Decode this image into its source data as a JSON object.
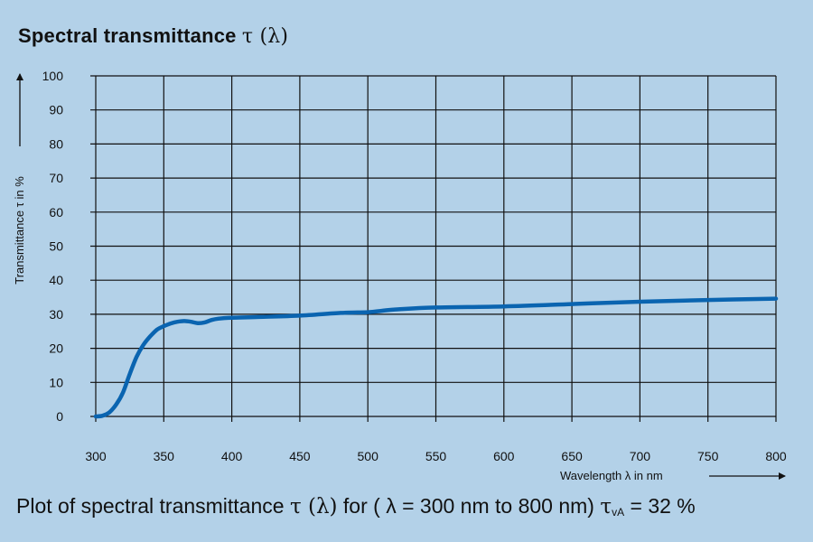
{
  "title": {
    "text": "Spectral transmittance",
    "symbol": "τ (λ)"
  },
  "caption": {
    "part1": "Plot of spectral transmittance ",
    "symbol1": "τ (λ)",
    "part2": "  for ( λ = 300 nm to 800 nm) ",
    "tau": "τ",
    "sub": "vA",
    "part3": " = 32 %"
  },
  "colors": {
    "background": "#b3d1e8",
    "grid": "#111111",
    "series": "#0a64b0"
  },
  "chart_data": {
    "type": "line",
    "xlabel": "Wavelength λ in nm",
    "ylabel": "Transmittance τ in %",
    "xlim": [
      300,
      800
    ],
    "ylim": [
      0,
      100
    ],
    "xticks": [
      "300",
      "350",
      "400",
      "450",
      "500",
      "550",
      "600",
      "650",
      "700",
      "750",
      "800"
    ],
    "yticks": [
      "0",
      "10",
      "20",
      "30",
      "40",
      "50",
      "60",
      "70",
      "80",
      "90",
      "100"
    ],
    "grid": true,
    "series": [
      {
        "x": [
          300,
          305,
          310,
          315,
          320,
          325,
          330,
          335,
          340,
          345,
          350,
          355,
          360,
          365,
          370,
          375,
          380,
          385,
          390,
          400,
          420,
          450,
          480,
          500,
          510,
          520,
          550,
          600,
          650,
          700,
          750,
          800
        ],
        "y": [
          0,
          0.2,
          1.2,
          3.5,
          7,
          12.5,
          17.5,
          21,
          23.5,
          25.5,
          26.5,
          27.3,
          27.8,
          28,
          27.8,
          27.4,
          27.6,
          28.3,
          28.7,
          29,
          29.2,
          29.6,
          30.4,
          30.6,
          31,
          31.4,
          32,
          32.3,
          33,
          33.7,
          34.2,
          34.6
        ]
      }
    ]
  }
}
